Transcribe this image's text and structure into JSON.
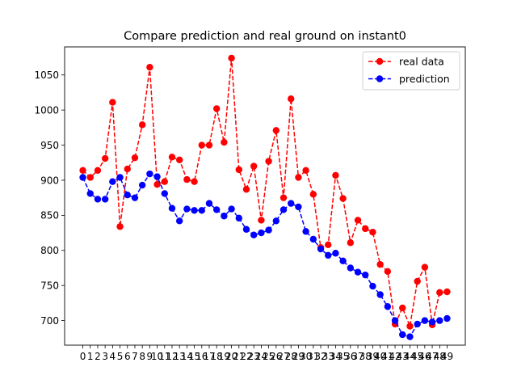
{
  "chart_data": {
    "type": "line",
    "title": "Compare prediction and real ground on instant0",
    "xlabel": "",
    "ylabel": "",
    "x": [
      0,
      1,
      2,
      3,
      4,
      5,
      6,
      7,
      8,
      9,
      10,
      11,
      12,
      13,
      14,
      15,
      16,
      17,
      18,
      19,
      20,
      21,
      22,
      23,
      24,
      25,
      26,
      27,
      28,
      29,
      30,
      31,
      32,
      33,
      34,
      35,
      36,
      37,
      38,
      39,
      40,
      41,
      42,
      43,
      44,
      45,
      46,
      47,
      48,
      49
    ],
    "x_tick_labels": [
      "0",
      "1",
      "2",
      "3",
      "4",
      "5",
      "6",
      "7",
      "8",
      "9",
      "10",
      "11",
      "12",
      "13",
      "14",
      "15",
      "16",
      "17",
      "18",
      "19",
      "20",
      "21",
      "22",
      "23",
      "24",
      "25",
      "26",
      "27",
      "28",
      "29",
      "30",
      "31",
      "32",
      "33",
      "34",
      "35",
      "36",
      "37",
      "38",
      "39",
      "40",
      "41",
      "42",
      "43",
      "44",
      "45",
      "46",
      "47",
      "48",
      "49"
    ],
    "xlim": [
      -2.45,
      51.45
    ],
    "ylim": [
      665,
      1090
    ],
    "y_ticks": [
      700,
      750,
      800,
      850,
      900,
      950,
      1000,
      1050
    ],
    "y_tick_labels": [
      "700",
      "750",
      "800",
      "850",
      "900",
      "950",
      "1000",
      "1050"
    ],
    "grid": false,
    "legend_position": "top-right",
    "series": [
      {
        "name": "real data",
        "color": "#ff0000",
        "line_style": "dashed",
        "marker": "circle",
        "values": [
          914,
          904,
          914,
          931,
          1011,
          834,
          916,
          932,
          979,
          1061,
          894,
          898,
          933,
          929,
          901,
          898,
          950,
          950,
          1002,
          954,
          1074,
          915,
          887,
          920,
          843,
          927,
          971,
          875,
          1016,
          904,
          914,
          880,
          804,
          808,
          907,
          874,
          811,
          843,
          831,
          826,
          780,
          770,
          695,
          718,
          692,
          756,
          776,
          694,
          740,
          741
        ]
      },
      {
        "name": "prediction",
        "color": "#0000ff",
        "line_style": "dashed",
        "marker": "circle",
        "values": [
          904,
          881,
          873,
          873,
          898,
          904,
          879,
          875,
          893,
          909,
          905,
          881,
          860,
          842,
          859,
          857,
          857,
          867,
          858,
          849,
          859,
          846,
          830,
          822,
          825,
          829,
          842,
          858,
          867,
          862,
          827,
          816,
          802,
          793,
          796,
          785,
          775,
          769,
          765,
          749,
          737,
          720,
          700,
          680,
          677,
          695,
          700,
          698,
          700,
          703
        ]
      }
    ]
  }
}
